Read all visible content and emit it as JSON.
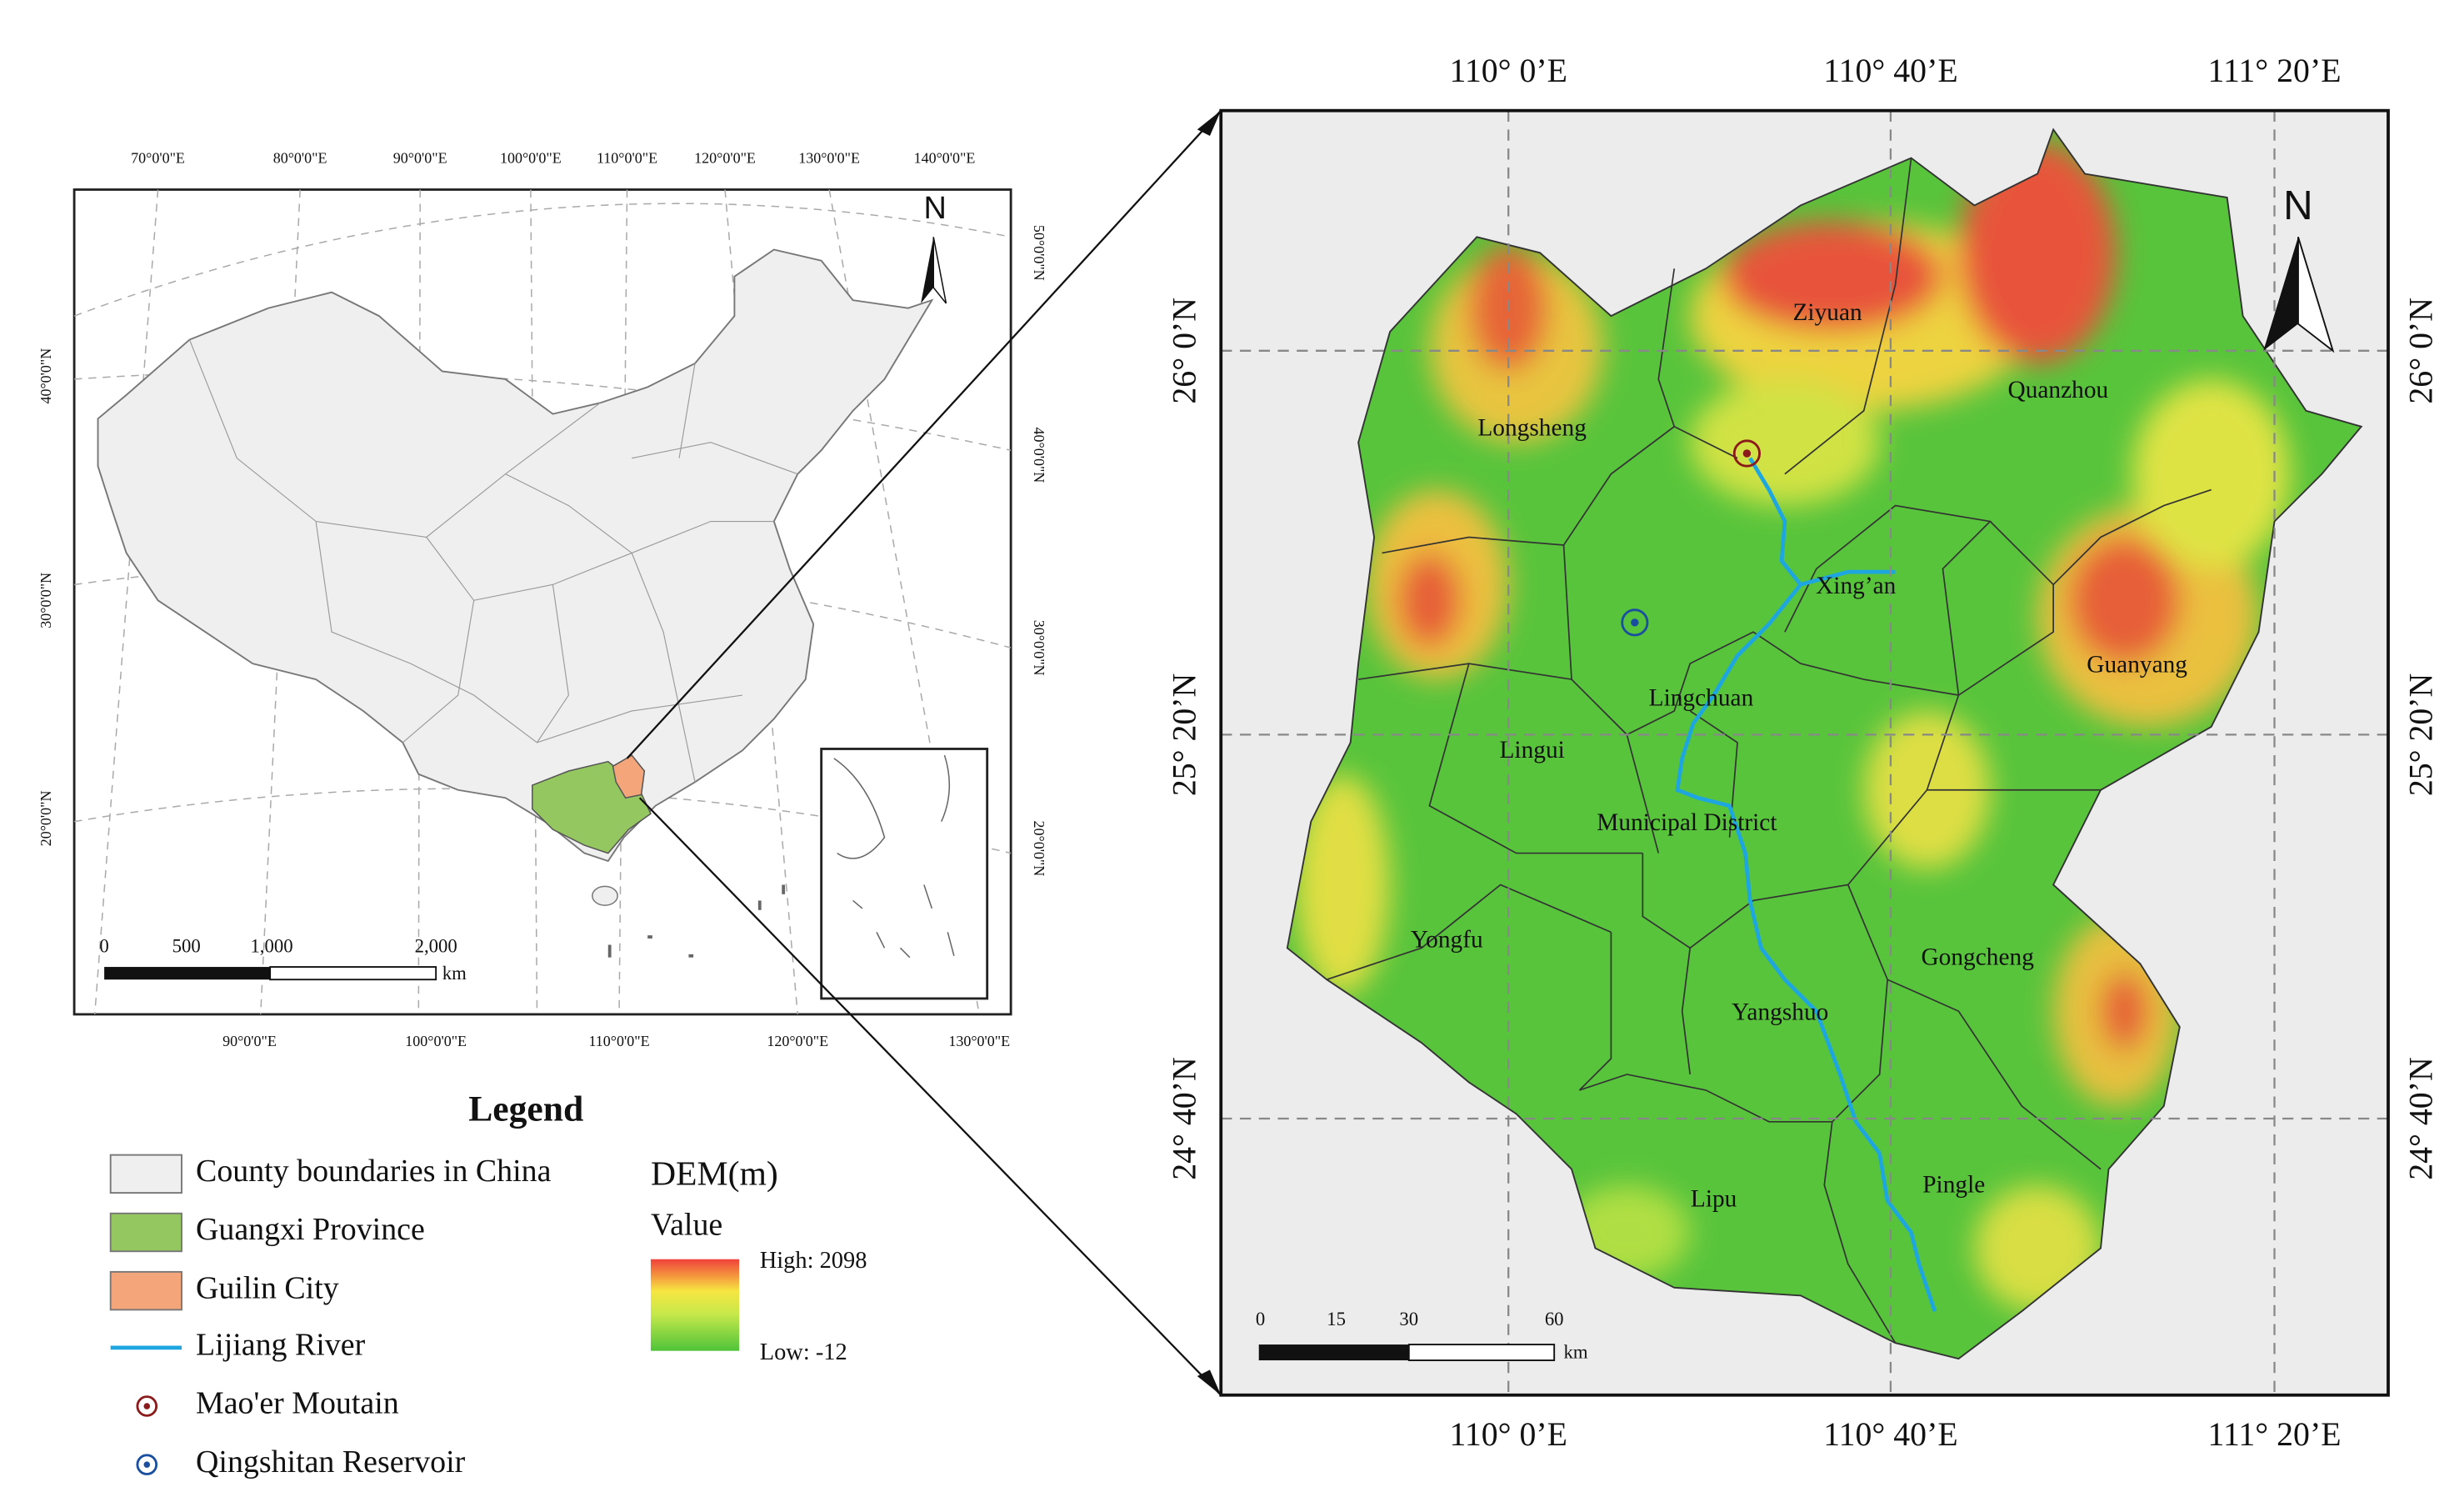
{
  "left_map": {
    "top_lon_labels": [
      "70°0'0\"E",
      "80°0'0\"E",
      "90°0'0\"E",
      "100°0'0\"E",
      "110°0'0\"E",
      "120°0'0\"E",
      "130°0'0\"E",
      "140°0'0\"E"
    ],
    "bottom_lon_labels": [
      "90°0'0\"E",
      "100°0'0\"E",
      "110°0'0\"E",
      "120°0'0\"E",
      "130°0'0\"E"
    ],
    "left_lat_labels": [
      "40°0'0\"N",
      "30°0'0\"N",
      "20°0'0\"N"
    ],
    "right_lat_labels": [
      "50°0'0\"N",
      "40°0'0\"N",
      "30°0'0\"N",
      "20°0'0\"N"
    ],
    "north": "N",
    "scale_labels": [
      "0",
      "500",
      "1,000",
      "2,000"
    ],
    "scale_unit": "km"
  },
  "legend": {
    "title": "Legend",
    "items": [
      "County boundaries in China",
      "Guangxi Province",
      "Guilin City",
      "Lijiang River",
      "Mao'er Moutain",
      "Qingshitan Reservoir"
    ],
    "dem_title": "DEM(m)",
    "dem_subtitle": "Value",
    "high": "High: 2098",
    "low": "Low: -12"
  },
  "right_map": {
    "top_lon_labels": [
      "110° 0’E",
      "110° 40’E",
      "111° 20’E"
    ],
    "bottom_lon_labels": [
      "110° 0’E",
      "110° 40’E",
      "111° 20’E"
    ],
    "left_lat_labels": [
      "26° 0’N",
      "25° 20’N",
      "24° 40’N"
    ],
    "right_lat_labels": [
      "26° 0’N",
      "25° 20’N",
      "24° 40’N"
    ],
    "north": "N",
    "places": [
      "Ziyuan",
      "Quanzhou",
      "Longsheng",
      "Xing’an",
      "Guanyang",
      "Lingchuan",
      "Lingui",
      "Municipal District",
      "Yongfu",
      "Gongcheng",
      "Yangshuo",
      "Pingle",
      "Lipu"
    ],
    "scale_labels": [
      "0",
      "15",
      "30",
      "60"
    ],
    "scale_unit": "km"
  }
}
